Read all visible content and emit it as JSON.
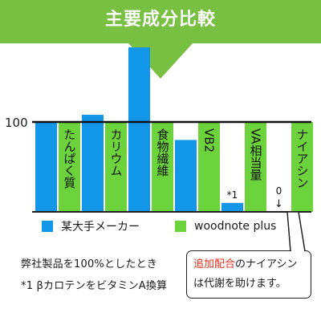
{
  "header": {
    "title": "主要成分比較"
  },
  "chart_data": {
    "type": "bar",
    "reference_line": 100,
    "ylim": [
      0,
      190
    ],
    "categories": [
      "たんぱく質",
      "カリウム",
      "食物繊維",
      "VB2",
      "VA相当量",
      "ナイアシン"
    ],
    "series": [
      {
        "name": "某大手メーカー",
        "color": "#1296e8",
        "values": [
          100,
          108,
          183,
          80,
          10,
          0
        ]
      },
      {
        "name": "woodnote plus",
        "color": "#6cd33c",
        "values": [
          100,
          100,
          100,
          100,
          100,
          100
        ]
      }
    ],
    "annotations": [
      {
        "category": "VA相当量",
        "text": "*1"
      },
      {
        "category": "ナイアシン",
        "text": "0",
        "arrow": "↓"
      }
    ],
    "tick_labels": [
      "100"
    ]
  },
  "notes": {
    "line1": "弊社製品を100%としたとき",
    "line2": "*1 βカロテンをビタミンA換算"
  },
  "callout": {
    "highlight": "追加配合",
    "rest": "のナイアシン",
    "line2": "は代謝を助けます。"
  }
}
